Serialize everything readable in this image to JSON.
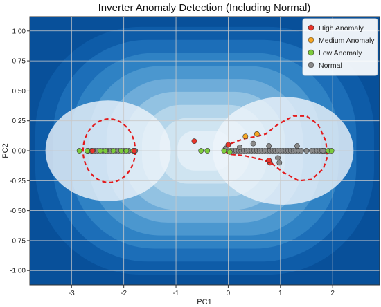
{
  "chart_data": {
    "type": "scatter",
    "title": "Inverter Anomaly Detection (Including Normal)",
    "xlabel": "PC1",
    "ylabel": "PC2",
    "xlim": [
      -3.8,
      2.9
    ],
    "ylim": [
      -1.12,
      1.12
    ],
    "xticks": [
      -3,
      -2,
      -1,
      0,
      1,
      2
    ],
    "yticks": [
      1.0,
      0.75,
      0.5,
      0.25,
      0.0,
      -0.25,
      -0.5,
      -0.75,
      -1.0
    ],
    "xtick_labels": [
      "-3",
      "-2",
      "-1",
      "0",
      "1",
      "2"
    ],
    "ytick_labels": [
      "1.00",
      "0.75",
      "0.50",
      "0.25",
      "0.00",
      "-0.25",
      "-0.50",
      "-0.75",
      "-1.00"
    ],
    "grid": true,
    "legend_position": "top-right",
    "background": "decision-function contour (filled, blue shades)",
    "boundary": "dashed red decision boundary around two clusters",
    "colors": {
      "High Anomaly": "#e8342a",
      "Medium Anomaly": "#f5a623",
      "Low Anomaly": "#7ccb3c",
      "Normal": "#8a8a8a",
      "boundary": "#e31a1c"
    },
    "series": [
      {
        "name": "High Anomaly",
        "points": [
          [
            -0.65,
            0.08
          ],
          [
            0.0,
            0.05
          ],
          [
            0.8,
            -0.1
          ],
          [
            -2.6,
            0.0
          ],
          [
            -1.8,
            0.0
          ],
          [
            0.78,
            -0.08
          ]
        ]
      },
      {
        "name": "Medium Anomaly",
        "points": [
          [
            0.33,
            0.12
          ],
          [
            0.55,
            0.14
          ]
        ]
      },
      {
        "name": "Low Anomaly",
        "points": [
          [
            -2.85,
            0.0
          ],
          [
            -2.7,
            0.0
          ],
          [
            -2.45,
            0.0
          ],
          [
            -2.35,
            0.0
          ],
          [
            -2.2,
            0.0
          ],
          [
            -2.05,
            0.0
          ],
          [
            -1.95,
            0.0
          ],
          [
            -1.82,
            0.0
          ],
          [
            -0.52,
            0.0
          ],
          [
            -0.4,
            0.0
          ],
          [
            -0.08,
            0.0
          ],
          [
            0.03,
            -0.01
          ],
          [
            1.92,
            0.0
          ],
          [
            1.98,
            0.0
          ]
        ]
      },
      {
        "name": "Normal",
        "points": [
          [
            -2.68,
            0.0
          ],
          [
            -2.62,
            0.0
          ],
          [
            -2.55,
            0.0
          ],
          [
            -2.5,
            0.0
          ],
          [
            -2.4,
            0.0
          ],
          [
            -2.3,
            0.0
          ],
          [
            -2.25,
            0.0
          ],
          [
            -2.15,
            0.0
          ],
          [
            -2.1,
            0.0
          ],
          [
            -2.0,
            0.0
          ],
          [
            -1.9,
            0.0
          ],
          [
            -1.78,
            0.0
          ],
          [
            -0.05,
            0.02
          ],
          [
            0.05,
            0.0
          ],
          [
            0.1,
            0.0
          ],
          [
            0.15,
            0.0
          ],
          [
            0.2,
            0.0
          ],
          [
            0.25,
            0.0
          ],
          [
            0.3,
            0.0
          ],
          [
            0.35,
            0.0
          ],
          [
            0.4,
            0.0
          ],
          [
            0.45,
            0.0
          ],
          [
            0.5,
            0.0
          ],
          [
            0.55,
            0.0
          ],
          [
            0.6,
            0.0
          ],
          [
            0.65,
            0.0
          ],
          [
            0.7,
            0.0
          ],
          [
            0.75,
            0.0
          ],
          [
            0.8,
            0.0
          ],
          [
            0.85,
            0.0
          ],
          [
            0.9,
            0.0
          ],
          [
            0.95,
            0.0
          ],
          [
            1.0,
            0.0
          ],
          [
            1.05,
            0.0
          ],
          [
            1.1,
            0.0
          ],
          [
            1.15,
            0.0
          ],
          [
            1.2,
            0.0
          ],
          [
            1.25,
            0.0
          ],
          [
            1.3,
            0.0
          ],
          [
            1.35,
            0.0
          ],
          [
            1.4,
            0.0
          ],
          [
            1.5,
            0.0
          ],
          [
            1.6,
            0.0
          ],
          [
            1.65,
            0.0
          ],
          [
            1.7,
            0.0
          ],
          [
            1.75,
            0.0
          ],
          [
            1.8,
            0.0
          ],
          [
            1.85,
            0.0
          ],
          [
            0.78,
            0.04
          ],
          [
            0.95,
            -0.06
          ],
          [
            0.48,
            0.06
          ],
          [
            0.22,
            0.03
          ],
          [
            0.98,
            -0.1
          ],
          [
            1.32,
            0.04
          ],
          [
            1.82,
            0.0
          ]
        ]
      }
    ]
  }
}
